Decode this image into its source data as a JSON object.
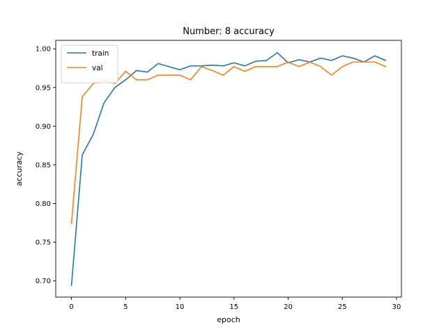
{
  "chart_data": {
    "type": "line",
    "title": "Number: 8 accuracy",
    "xlabel": "epoch",
    "ylabel": "accuracy",
    "xlim": [
      -1.45,
      30.45
    ],
    "ylim": [
      0.679,
      1.011
    ],
    "xticks": [
      0,
      5,
      10,
      15,
      20,
      25,
      30
    ],
    "yticks": [
      0.7,
      0.75,
      0.8,
      0.85,
      0.9,
      0.95,
      1.0
    ],
    "grid": false,
    "legend": "upper-left",
    "x": [
      0,
      1,
      2,
      3,
      4,
      5,
      6,
      7,
      8,
      9,
      10,
      11,
      12,
      13,
      14,
      15,
      16,
      17,
      18,
      19,
      20,
      21,
      22,
      23,
      24,
      25,
      26,
      27,
      28,
      29
    ],
    "series": [
      {
        "name": "train",
        "color": "#1f77b4",
        "values": [
          0.694,
          0.863,
          0.889,
          0.93,
          0.95,
          0.96,
          0.972,
          0.97,
          0.981,
          0.977,
          0.973,
          0.978,
          0.978,
          0.979,
          0.978,
          0.982,
          0.978,
          0.984,
          0.985,
          0.995,
          0.982,
          0.986,
          0.983,
          0.988,
          0.985,
          0.991,
          0.988,
          0.983,
          0.991,
          0.985
        ]
      },
      {
        "name": "val",
        "color": "#ff7f0e",
        "values": [
          0.774,
          0.938,
          0.955,
          0.96,
          0.955,
          0.971,
          0.96,
          0.96,
          0.966,
          0.966,
          0.966,
          0.96,
          0.977,
          0.972,
          0.966,
          0.977,
          0.971,
          0.977,
          0.977,
          0.977,
          0.983,
          0.977,
          0.983,
          0.977,
          0.966,
          0.977,
          0.983,
          0.983,
          0.983,
          0.977
        ]
      }
    ]
  }
}
